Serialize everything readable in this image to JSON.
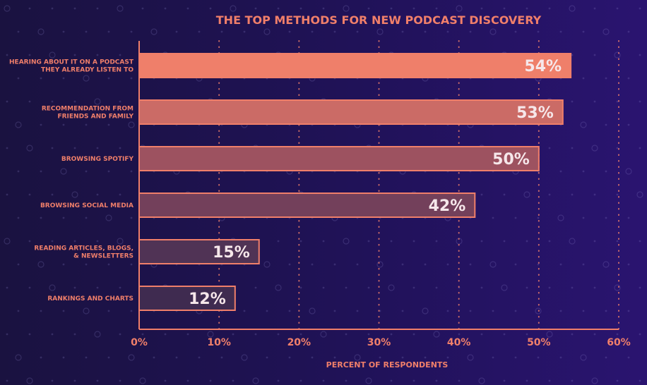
{
  "chart_data": {
    "type": "bar",
    "orientation": "horizontal",
    "title": "THE TOP METHODS FOR NEW PODCAST DISCOVERY",
    "xlabel": "PERCENT OF RESPONDENTS",
    "ylabel": "",
    "categories": [
      [
        "HEARING ABOUT IT ON A PODCAST",
        "THEY ALREADY LISTEN TO"
      ],
      [
        "RECOMMENDATION FROM",
        "FRIENDS AND FAMILY"
      ],
      [
        "BROWSING SPOTIFY"
      ],
      [
        "BROWSING SOCIAL MEDIA"
      ],
      [
        "READING ARTICLES, BLOGS,",
        "& NEWSLETTERS"
      ],
      [
        "RANKINGS AND CHARTS"
      ]
    ],
    "values": [
      54,
      53,
      50,
      42,
      15,
      12
    ],
    "value_labels": [
      "54%",
      "53%",
      "50%",
      "42%",
      "15%",
      "12%"
    ],
    "xlim": [
      0,
      60
    ],
    "xticks": [
      0,
      10,
      20,
      30,
      40,
      50,
      60
    ],
    "xtick_labels": [
      "0%",
      "10%",
      "20%",
      "30%",
      "40%",
      "50%",
      "60%"
    ],
    "grid": "vertical-dotted",
    "legend": "none",
    "colors": {
      "accent": "#f07f6a",
      "bar_fills": [
        "#ef7f6a",
        "#cb6b66",
        "#9d5260",
        "#73405b",
        "#503355",
        "#3f2b50"
      ],
      "bar_stroke": "#f07f6a",
      "value_text": "#f6e7ea"
    }
  }
}
